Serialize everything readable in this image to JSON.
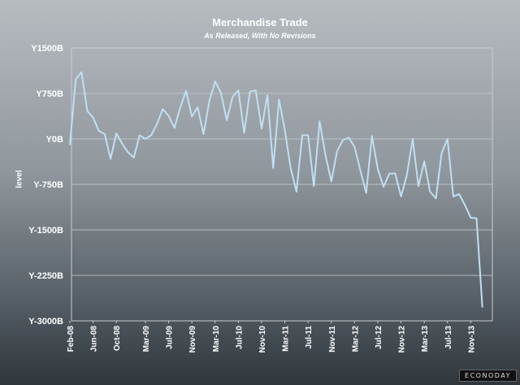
{
  "chart_data": {
    "type": "line",
    "title": "Merchandise Trade",
    "subtitle": "As Released, With No Revisions",
    "ylabel": "level",
    "xlabel": "",
    "ylim": [
      -3000,
      1500
    ],
    "yticks": [
      1500,
      750,
      0,
      -750,
      -1500,
      -2250,
      -3000
    ],
    "ytick_labels": [
      "Y1500B",
      "Y750B",
      "Y0B",
      "Y-750B",
      "Y-1500B",
      "Y-2250B",
      "Y-3000B"
    ],
    "xtick_labels": [
      "Feb-08",
      "Jun-08",
      "Oct-08",
      "Mar-09",
      "Jul-09",
      "Nov-09",
      "Mar-10",
      "Jul-10",
      "Nov-10",
      "Mar-11",
      "Jul-11",
      "Nov-11",
      "Mar-12",
      "Jul-12",
      "Nov-12",
      "Mar-13",
      "Jul-13",
      "Nov-13"
    ],
    "xtick_index": [
      0,
      4,
      8,
      13,
      17,
      21,
      25,
      29,
      33,
      37,
      41,
      45,
      49,
      53,
      57,
      61,
      65,
      69
    ],
    "grid": true,
    "series": [
      {
        "values": [
          -100,
          980,
          1100,
          460,
          350,
          130,
          80,
          -330,
          90,
          -80,
          -220,
          -310,
          60,
          0,
          60,
          250,
          490,
          380,
          180,
          520,
          790,
          370,
          520,
          80,
          620,
          950,
          760,
          310,
          690,
          800,
          100,
          780,
          800,
          170,
          720,
          -480,
          650,
          140,
          -480,
          -870,
          60,
          60,
          -780,
          290,
          -270,
          -700,
          -200,
          -20,
          20,
          -130,
          -520,
          -890,
          50,
          -500,
          -790,
          -570,
          -570,
          -950,
          -600,
          0,
          -780,
          -370,
          -870,
          -980,
          -230,
          0,
          -950,
          -910,
          -1090,
          -1300,
          -1310,
          -2780
        ]
      }
    ]
  },
  "brand_label": "ECONODAY"
}
